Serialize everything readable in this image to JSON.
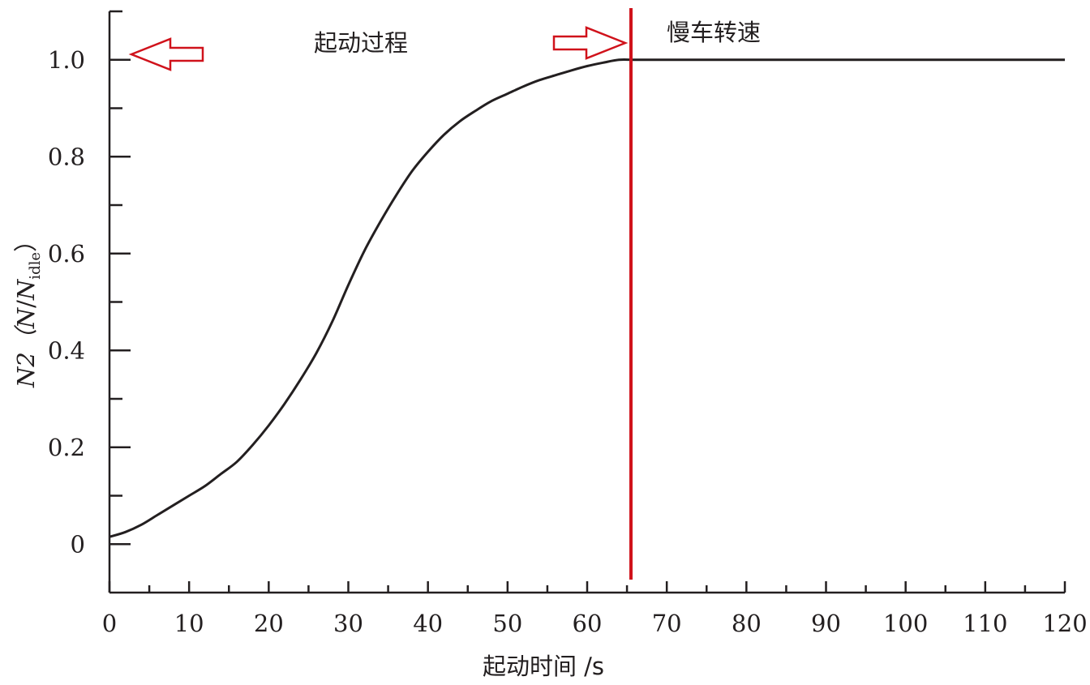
{
  "chart_data": {
    "type": "line",
    "xlabel": "起动时间 /s",
    "ylabel": {
      "prefix": "N2（",
      "numerator": "N",
      "slash": "/",
      "denominator": "N",
      "subscript": "idle",
      "suffix": "）"
    },
    "xlim": [
      0,
      120
    ],
    "ylim": [
      -0.1,
      1.1
    ],
    "x_ticks": [
      0,
      10,
      20,
      30,
      40,
      50,
      60,
      70,
      80,
      90,
      100,
      110,
      120
    ],
    "x_tick_labels": [
      "0",
      "10",
      "20",
      "30",
      "40",
      "50",
      "60",
      "70",
      "80",
      "90",
      "100",
      "110",
      "120"
    ],
    "x_minor_ticks": [
      5,
      15,
      25,
      35,
      45,
      55,
      65,
      75,
      85,
      95,
      105,
      115
    ],
    "y_ticks": [
      0,
      0.2,
      0.4,
      0.6,
      0.8,
      1.0
    ],
    "y_tick_labels": [
      "0",
      "0.2",
      "0.4",
      "0.6",
      "0.8",
      "1.0"
    ],
    "y_minor_ticks": [
      0.1,
      0.3,
      0.5,
      0.7,
      0.9,
      1.1
    ],
    "grid": false,
    "series": [
      {
        "color": "#231f20",
        "x": [
          0,
          2,
          4,
          6,
          8,
          10,
          12,
          14,
          16,
          18,
          20,
          22,
          24,
          26,
          28,
          30,
          32,
          34,
          36,
          38,
          40,
          42,
          44,
          46,
          48,
          50,
          52,
          54,
          56,
          58,
          60,
          62,
          64,
          66,
          70,
          80,
          90,
          100,
          110,
          120
        ],
        "y": [
          0.015,
          0.025,
          0.04,
          0.06,
          0.08,
          0.1,
          0.12,
          0.145,
          0.17,
          0.205,
          0.245,
          0.29,
          0.34,
          0.395,
          0.46,
          0.535,
          0.605,
          0.665,
          0.72,
          0.77,
          0.81,
          0.845,
          0.873,
          0.895,
          0.915,
          0.93,
          0.945,
          0.958,
          0.968,
          0.978,
          0.987,
          0.994,
          1.0,
          1.0,
          1.0,
          1.0,
          1.0,
          1.0,
          1.0,
          1.0
        ]
      }
    ],
    "vline": {
      "x": 65.5,
      "color": "#d0121b"
    },
    "annotations": [
      {
        "text": "起动过程",
        "arrow": "left"
      },
      {
        "text": "慢车转速",
        "arrow": "right"
      }
    ]
  }
}
